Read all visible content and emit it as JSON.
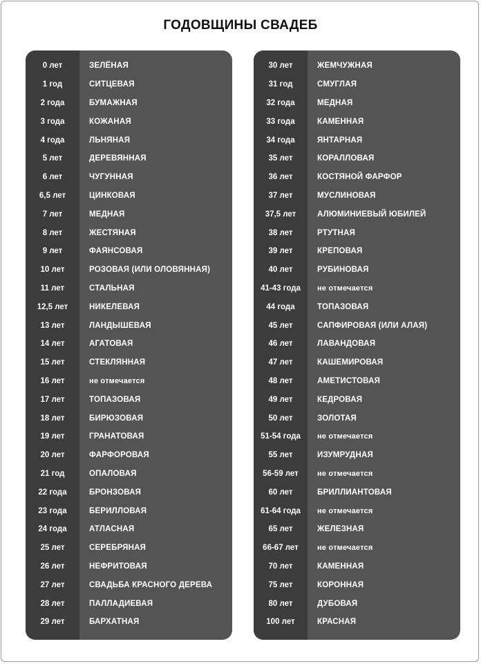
{
  "title": "ГОДОВЩИНЫ СВАДЕБ",
  "colors": {
    "panel": "#545454",
    "date_column": "#3c3c3c",
    "text": "#ffffff"
  },
  "left": [
    {
      "year": "0 лет",
      "name": "ЗЕЛЁНАЯ"
    },
    {
      "year": "1 год",
      "name": "СИТЦЕВАЯ"
    },
    {
      "year": "2 года",
      "name": "БУМАЖНАЯ"
    },
    {
      "year": "3 года",
      "name": "КОЖАНАЯ"
    },
    {
      "year": "4 года",
      "name": "ЛЬНЯНАЯ"
    },
    {
      "year": "5 лет",
      "name": "ДЕРЕВЯННАЯ"
    },
    {
      "year": "6 лет",
      "name": "ЧУГУННАЯ"
    },
    {
      "year": "6,5 лет",
      "name": "ЦИНКОВАЯ"
    },
    {
      "year": "7 лет",
      "name": "МЕДНАЯ"
    },
    {
      "year": "8 лет",
      "name": "ЖЕСТЯНАЯ"
    },
    {
      "year": "9 лет",
      "name": "ФАЯНСОВАЯ"
    },
    {
      "year": "10 лет",
      "name": "РОЗОВАЯ (ИЛИ ОЛОВЯННАЯ)"
    },
    {
      "year": "11 лет",
      "name": "СТАЛЬНАЯ"
    },
    {
      "year": "12,5 лет",
      "name": "НИКЕЛЕВАЯ"
    },
    {
      "year": "13 лет",
      "name": "ЛАНДЫШЕВАЯ"
    },
    {
      "year": "14 лет",
      "name": "АГАТОВАЯ"
    },
    {
      "year": "15 лет",
      "name": "СТЕКЛЯННАЯ"
    },
    {
      "year": "16 лет",
      "name": "не отмечается"
    },
    {
      "year": "17 лет",
      "name": "ТОПАЗОВАЯ"
    },
    {
      "year": "18 лет",
      "name": "БИРЮЗОВАЯ"
    },
    {
      "year": "19 лет",
      "name": "ГРАНАТОВАЯ"
    },
    {
      "year": "20 лет",
      "name": "ФАРФОРОВАЯ"
    },
    {
      "year": "21 год",
      "name": "ОПАЛОВАЯ"
    },
    {
      "year": "22 года",
      "name": "БРОНЗОВАЯ"
    },
    {
      "year": "23 года",
      "name": "БЕРИЛЛОВАЯ"
    },
    {
      "year": "24 года",
      "name": "АТЛАСНАЯ"
    },
    {
      "year": "25 лет",
      "name": "СЕРЕБРЯНАЯ"
    },
    {
      "year": "26 лет",
      "name": "НЕФРИТОВАЯ"
    },
    {
      "year": "27 лет",
      "name": "СВАДЬБА КРАСНОГО ДЕРЕВА"
    },
    {
      "year": "28 лет",
      "name": "ПАЛЛАДИЕВАЯ"
    },
    {
      "year": "29 лет",
      "name": "БАРХАТНАЯ"
    }
  ],
  "right": [
    {
      "year": "30 лет",
      "name": "ЖЕМЧУЖНАЯ"
    },
    {
      "year": "31 год",
      "name": "СМУГЛАЯ"
    },
    {
      "year": "32 года",
      "name": "МЕДНАЯ"
    },
    {
      "year": "33 года",
      "name": "КАМЕННАЯ"
    },
    {
      "year": "34 года",
      "name": "ЯНТАРНАЯ"
    },
    {
      "year": "35 лет",
      "name": "КОРАЛЛОВАЯ"
    },
    {
      "year": "36 лет",
      "name": "КОСТЯНОЙ ФАРФОР"
    },
    {
      "year": "37 лет",
      "name": "МУСЛИНОВАЯ"
    },
    {
      "year": "37,5 лет",
      "name": "АЛЮМИНИЕВЫЙ ЮБИЛЕЙ"
    },
    {
      "year": "38 лет",
      "name": "РТУТНАЯ"
    },
    {
      "year": "39 лет",
      "name": "КРЕПОВАЯ"
    },
    {
      "year": "40 лет",
      "name": "РУБИНОВАЯ"
    },
    {
      "year": "41-43 года",
      "name": "не отмечается"
    },
    {
      "year": "44 года",
      "name": "ТОПАЗОВАЯ"
    },
    {
      "year": "45 лет",
      "name": "САПФИРОВАЯ (ИЛИ АЛАЯ)"
    },
    {
      "year": "46 лет",
      "name": "ЛАВАНДОВАЯ"
    },
    {
      "year": "47 лет",
      "name": "КАШЕМИРОВАЯ"
    },
    {
      "year": "48 лет",
      "name": "АМЕТИСТОВАЯ"
    },
    {
      "year": "49 лет",
      "name": "КЕДРОВАЯ"
    },
    {
      "year": "50 лет",
      "name": "ЗОЛОТАЯ"
    },
    {
      "year": "51-54 года",
      "name": "не отмечается"
    },
    {
      "year": "55 лет",
      "name": "ИЗУМРУДНАЯ"
    },
    {
      "year": "56-59 лет",
      "name": "не отмечается"
    },
    {
      "year": "60 лет",
      "name": "БРИЛЛИАНТОВАЯ"
    },
    {
      "year": "61-64 года",
      "name": "не отмечается"
    },
    {
      "year": "65 лет",
      "name": "ЖЕЛЕЗНАЯ"
    },
    {
      "year": "66-67 лет",
      "name": "не отмечается"
    },
    {
      "year": "70 лет",
      "name": "КАМЕННАЯ"
    },
    {
      "year": "75 лет",
      "name": "КОРОННАЯ"
    },
    {
      "year": "80 лет",
      "name": "ДУБОВАЯ"
    },
    {
      "year": "100 лет",
      "name": "КРАСНАЯ"
    }
  ]
}
